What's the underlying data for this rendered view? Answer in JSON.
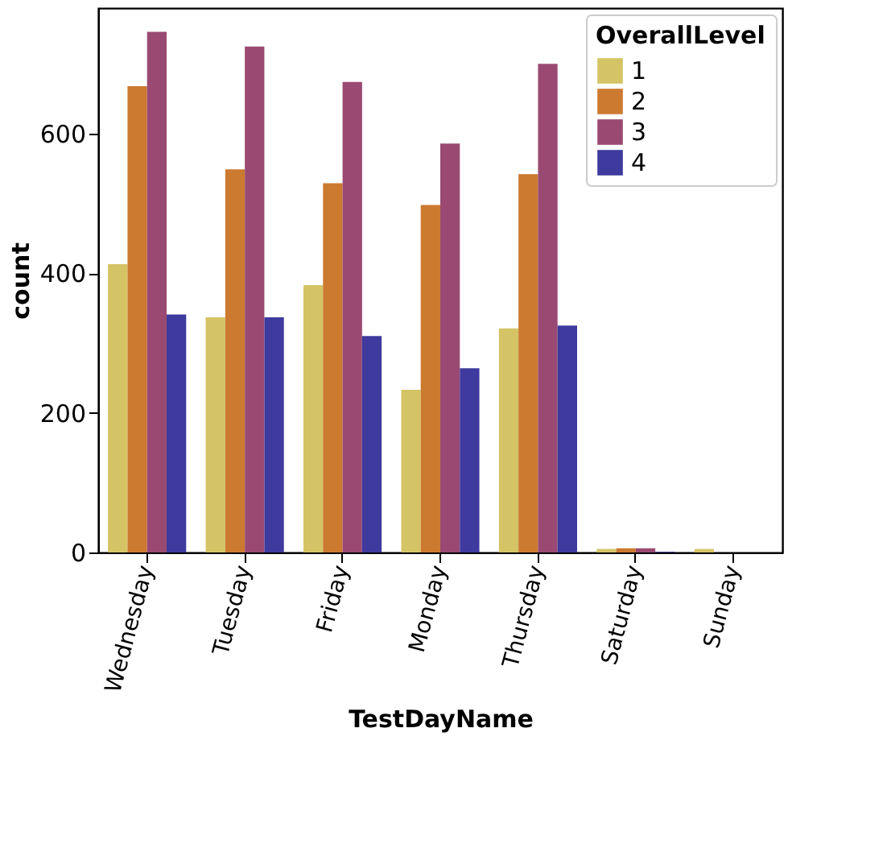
{
  "chart_data": {
    "type": "bar",
    "xlabel": "TestDayName",
    "ylabel": "count",
    "legend_title": "OverallLevel",
    "categories": [
      "Wednesday",
      "Tuesday",
      "Friday",
      "Monday",
      "Thursday",
      "Saturday",
      "Sunday"
    ],
    "series": [
      {
        "name": "1",
        "color": "#d4c465",
        "values": [
          413,
          337,
          383,
          233,
          321,
          5,
          5
        ]
      },
      {
        "name": "2",
        "color": "#cc7a30",
        "values": [
          668,
          549,
          529,
          498,
          542,
          6,
          0
        ]
      },
      {
        "name": "3",
        "color": "#9a4a72",
        "values": [
          746,
          725,
          674,
          586,
          700,
          6,
          0
        ]
      },
      {
        "name": "4",
        "color": "#3f3a9e",
        "values": [
          341,
          337,
          310,
          264,
          325,
          1,
          0
        ]
      }
    ],
    "ylim": [
      0,
      780
    ],
    "yticks": [
      0,
      200,
      400,
      600
    ],
    "grid": false,
    "legend": "top right"
  }
}
